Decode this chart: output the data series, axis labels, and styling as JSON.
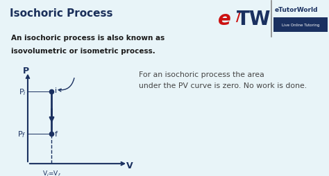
{
  "title": "Isochoric Process",
  "subtitle_line1": "An isochoric process is also known as",
  "subtitle_line2": "isovolumetric or isometric process.",
  "annotation": "For an isochoric process the area\nunder the PV curve is zero. No work is done.",
  "bg_color": "#e8f4f8",
  "header_bg": "#b8d9ea",
  "subtitle_bg": "#f5cfc4",
  "header_text_color": "#1a2f5a",
  "subtitle_text_color": "#1a1a1a",
  "diagram_color": "#1a3060",
  "annotation_color": "#444444",
  "Pi_label": "P$_i$",
  "Pf_label": "P$_f$",
  "V_label": "V",
  "P_label": "P",
  "Vi_Vf_label": "V$_i$=V$_f$",
  "i_label": "i",
  "f_label": "f",
  "logo_e_color": "#cc1111",
  "logo_slash_color": "#cc1111",
  "logo_w_color": "#1a3060",
  "logo_text": "eTutorWorld",
  "logo_sub": "Live Online Tutoring",
  "logo_sub_bg": "#1a3060",
  "logo_bar_color": "#888888"
}
